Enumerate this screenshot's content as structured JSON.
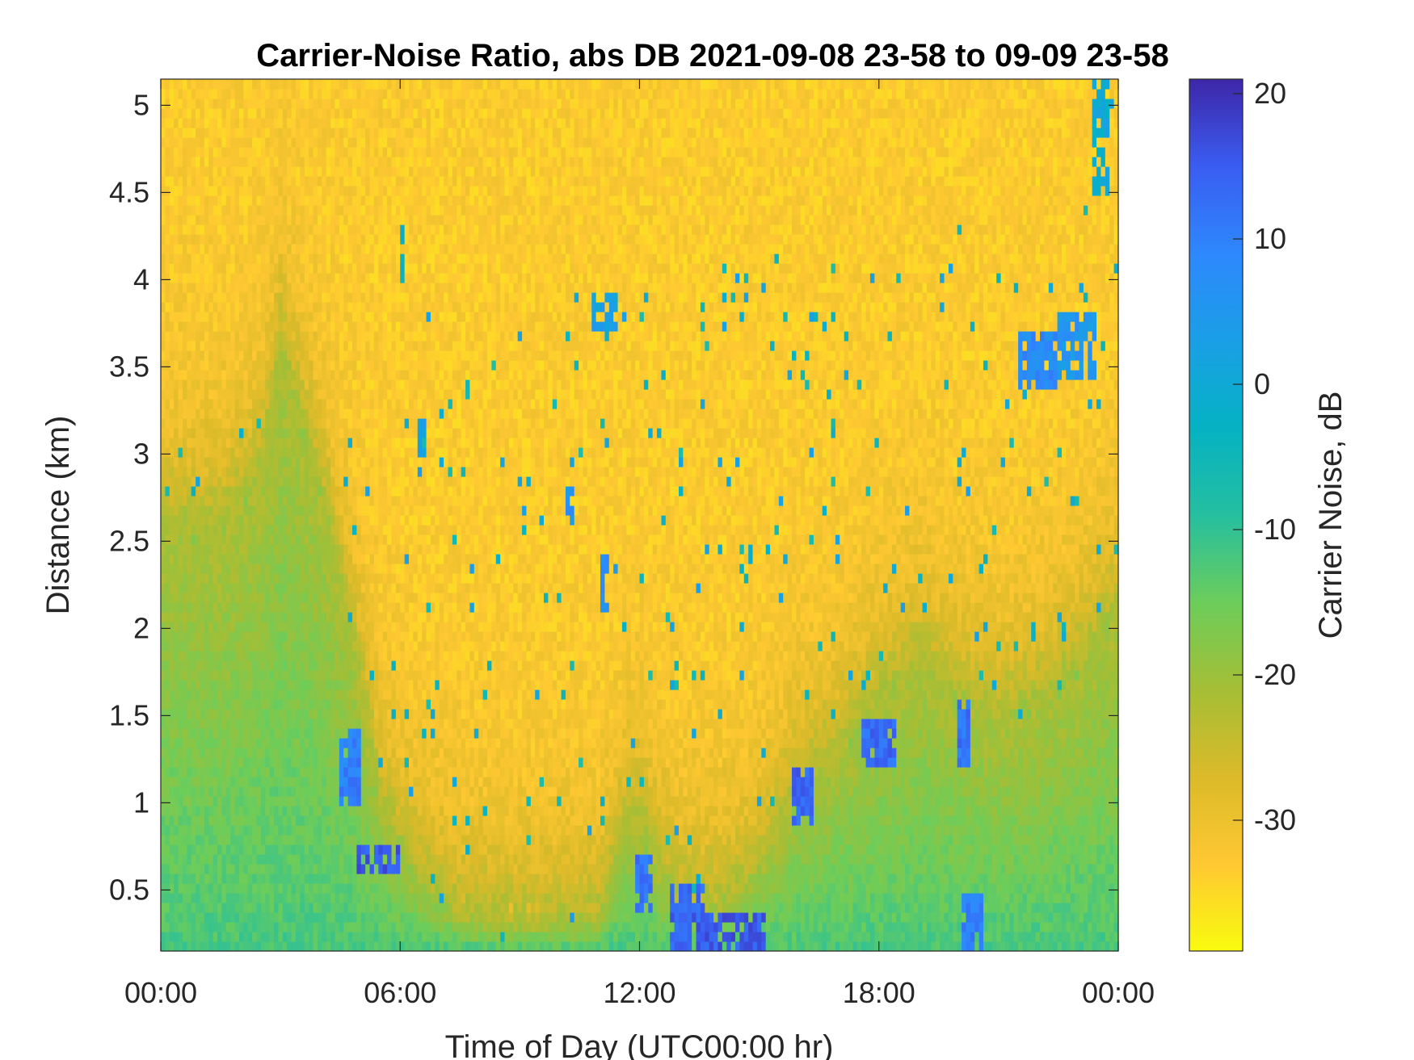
{
  "chart_data": {
    "type": "heatmap",
    "title": "Carrier-Noise Ratio, abs DB 2021-09-08 23-58 to 09-09 23-58",
    "xlabel": "Time of Day (UTC00:00 hr)",
    "ylabel": "Distance (km)",
    "colorbar_label": "Carrier Noise, dB",
    "colormap": "parula-reversed",
    "colormap_stops": [
      "#F9FB0E",
      "#FEC832",
      "#DBBA29",
      "#A5BE35",
      "#6CCD5A",
      "#25BFA0",
      "#05B2C3",
      "#1A9FE6",
      "#2E88FD",
      "#3A5DF1",
      "#3E26A8"
    ],
    "xlim": [
      0,
      24
    ],
    "ylim": [
      0.15,
      5.15
    ],
    "clim": [
      -39,
      21
    ],
    "xticks": [
      0,
      6,
      12,
      18,
      24
    ],
    "xticklabels": [
      "00:00",
      "06:00",
      "12:00",
      "18:00",
      "00:00"
    ],
    "yticks": [
      0.5,
      1,
      1.5,
      2,
      2.5,
      3,
      3.5,
      4,
      4.5,
      5
    ],
    "yticklabels": [
      "0.5",
      "1",
      "1.5",
      "2",
      "2.5",
      "3",
      "3.5",
      "4",
      "4.5",
      "5"
    ],
    "cticks": [
      -30,
      -20,
      -10,
      0,
      10,
      20
    ],
    "cticklabels": [
      "-30",
      "-20",
      "-10",
      "0",
      "10",
      "20"
    ],
    "grid": false,
    "background_level_db": -33,
    "near_range_level_db": -10,
    "boundary_layer_top_km": [
      [
        0,
        2.6
      ],
      [
        1.5,
        2.6
      ],
      [
        2.5,
        2.9
      ],
      [
        3,
        3.6
      ],
      [
        4,
        2.8
      ],
      [
        4.5,
        2.3
      ],
      [
        5,
        1.7
      ],
      [
        5.5,
        1.0
      ],
      [
        5.9,
        0.8
      ],
      [
        6.5,
        0.55
      ],
      [
        7.5,
        0.35
      ],
      [
        9,
        0.3
      ],
      [
        10,
        0.3
      ],
      [
        11,
        0.35
      ],
      [
        11.6,
        0.8
      ],
      [
        12,
        0.9
      ],
      [
        12.5,
        0.6
      ],
      [
        13,
        0.45
      ],
      [
        14,
        0.4
      ],
      [
        15,
        0.6
      ],
      [
        16,
        1.1
      ],
      [
        17,
        1.3
      ],
      [
        18,
        1.6
      ],
      [
        19,
        1.8
      ],
      [
        20,
        1.6
      ],
      [
        21,
        1.5
      ],
      [
        22,
        1.6
      ],
      [
        23,
        1.8
      ],
      [
        24,
        2.1
      ]
    ],
    "fringe_max_km": [
      [
        0,
        3.1
      ],
      [
        3,
        3.2
      ],
      [
        4,
        3.3
      ],
      [
        5,
        3.0
      ],
      [
        6,
        3.0
      ],
      [
        6.5,
        4.3
      ],
      [
        7,
        3.5
      ],
      [
        9.5,
        3.9
      ],
      [
        10.5,
        4.1
      ],
      [
        11.5,
        4.1
      ],
      [
        12,
        3.9
      ],
      [
        14,
        4.1
      ],
      [
        16,
        4.2
      ],
      [
        18,
        4.0
      ],
      [
        19.5,
        4.3
      ],
      [
        21,
        4.3
      ],
      [
        22,
        4.1
      ],
      [
        23,
        4.6
      ],
      [
        24,
        5.15
      ]
    ],
    "enhanced_returns": [
      {
        "t": [
          4.5,
          5.0
        ],
        "d": [
          1.0,
          1.4
        ],
        "db": 10
      },
      {
        "t": [
          4.9,
          6.0
        ],
        "d": [
          0.6,
          0.75
        ],
        "db": 15
      },
      {
        "t": [
          11.9,
          12.3
        ],
        "d": [
          0.4,
          0.7
        ],
        "db": 12
      },
      {
        "t": [
          12.8,
          13.6
        ],
        "d": [
          0.15,
          0.55
        ],
        "db": 14
      },
      {
        "t": [
          13.6,
          15.2
        ],
        "d": [
          0.15,
          0.35
        ],
        "db": 15
      },
      {
        "t": [
          15.8,
          16.4
        ],
        "d": [
          0.9,
          1.2
        ],
        "db": 14
      },
      {
        "t": [
          17.6,
          18.4
        ],
        "d": [
          1.2,
          1.5
        ],
        "db": 13
      },
      {
        "t": [
          20.0,
          20.3
        ],
        "d": [
          1.2,
          1.6
        ],
        "db": 12
      },
      {
        "t": [
          20.1,
          20.6
        ],
        "d": [
          0.15,
          0.5
        ],
        "db": 10
      },
      {
        "t": [
          10.8,
          11.4
        ],
        "d": [
          3.7,
          3.9
        ],
        "db": 3
      },
      {
        "t": [
          21.5,
          22.5
        ],
        "d": [
          3.4,
          3.7
        ],
        "db": 8
      },
      {
        "t": [
          22.5,
          23.4
        ],
        "d": [
          3.45,
          3.8
        ],
        "db": 5
      },
      {
        "t": [
          23.4,
          23.8
        ],
        "d": [
          4.5,
          5.15
        ],
        "db": 0
      },
      {
        "t": [
          6.0,
          6.1
        ],
        "d": [
          4.0,
          4.3
        ],
        "db": -3
      },
      {
        "t": [
          6.4,
          6.6
        ],
        "d": [
          2.9,
          3.2
        ],
        "db": 2
      },
      {
        "t": [
          10.2,
          10.4
        ],
        "d": [
          2.6,
          2.8
        ],
        "db": 6
      },
      {
        "t": [
          11.0,
          11.2
        ],
        "d": [
          2.1,
          2.4
        ],
        "db": 8
      }
    ]
  }
}
